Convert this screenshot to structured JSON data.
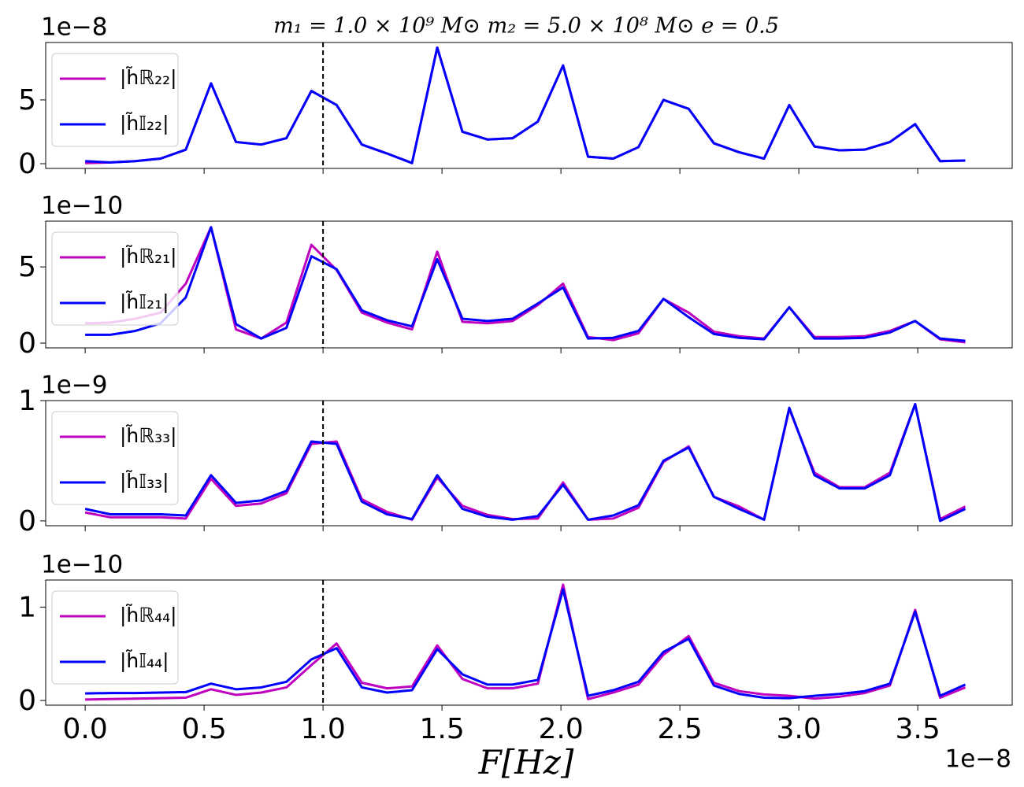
{
  "chart_data": {
    "type": "line",
    "title": "m₁ = 1.0 × 10⁹ M⊙  m₂ = 5.0 × 10⁸ M⊙  e = 0.5",
    "xlabel": "F[Hz]",
    "x_offset_label": "1e−8",
    "x": [
      0,
      0.106,
      0.211,
      0.317,
      0.423,
      0.529,
      0.634,
      0.74,
      0.846,
      0.951,
      1.057,
      1.163,
      1.269,
      1.374,
      1.48,
      1.586,
      1.691,
      1.797,
      1.903,
      2.009,
      2.114,
      2.22,
      2.326,
      2.431,
      2.537,
      2.643,
      2.749,
      2.854,
      2.96,
      3.066,
      3.171,
      3.277,
      3.383,
      3.489,
      3.594,
      3.7
    ],
    "xlim": [
      -0.166,
      3.897
    ],
    "xticks": [
      {
        "value": 0,
        "label": "0.0"
      },
      0.5,
      {
        "value": 1,
        "label": "1.0"
      },
      1.5,
      {
        "value": 2,
        "label": "2.0"
      },
      2.5,
      {
        "value": 3,
        "label": "3.0"
      },
      3.5
    ],
    "vline": 1.0,
    "panels": [
      {
        "y_offset_label": "1e−8",
        "ylim": [
          -0.37,
          9.5
        ],
        "yticks": [
          0,
          5
        ],
        "series": [
          {
            "name": "|h̃ℝ₂₂|",
            "color": "#bf00bf",
            "values": [
              0.05,
              0.1,
              0.2,
              0.4,
              1.1,
              6.3,
              1.7,
              1.5,
              2.0,
              5.7,
              4.6,
              1.5,
              0.8,
              0.05,
              9.1,
              2.5,
              1.9,
              2.0,
              3.3,
              7.7,
              0.55,
              0.4,
              1.3,
              5.0,
              4.3,
              1.6,
              0.9,
              0.4,
              4.6,
              1.35,
              1.05,
              1.1,
              1.7,
              3.1,
              0.2,
              0.25
            ]
          },
          {
            "name": "|h̃𝕀₂₂|",
            "color": "#0000ff",
            "values": [
              0.2,
              0.1,
              0.2,
              0.4,
              1.1,
              6.3,
              1.7,
              1.5,
              2.0,
              5.7,
              4.6,
              1.5,
              0.8,
              0.05,
              9.1,
              2.5,
              1.9,
              2.0,
              3.3,
              7.7,
              0.55,
              0.4,
              1.3,
              5.0,
              4.3,
              1.6,
              0.9,
              0.4,
              4.6,
              1.35,
              1.05,
              1.1,
              1.7,
              3.1,
              0.2,
              0.25
            ]
          }
        ]
      },
      {
        "y_offset_label": "1e−10",
        "ylim": [
          -0.31,
          8.0
        ],
        "yticks": [
          0,
          5
        ],
        "series": [
          {
            "name": "|h̃ℝ₂₁|",
            "color": "#bf00bf",
            "values": [
              1.3,
              1.35,
              1.6,
              2.0,
              3.9,
              7.6,
              0.9,
              0.3,
              1.35,
              6.45,
              4.8,
              2.0,
              1.35,
              0.9,
              6.0,
              1.4,
              1.3,
              1.45,
              2.5,
              3.9,
              0.4,
              0.2,
              0.65,
              2.9,
              2.0,
              0.75,
              0.45,
              0.3,
              2.35,
              0.4,
              0.4,
              0.45,
              0.8,
              1.45,
              0.25,
              0.05
            ]
          },
          {
            "name": "|h̃𝕀₂₁|",
            "color": "#0000ff",
            "values": [
              0.55,
              0.55,
              0.8,
              1.3,
              3.0,
              7.6,
              1.25,
              0.3,
              1.0,
              5.7,
              4.85,
              2.15,
              1.5,
              1.1,
              5.5,
              1.6,
              1.45,
              1.6,
              2.6,
              3.65,
              0.3,
              0.35,
              0.8,
              2.9,
              1.7,
              0.6,
              0.35,
              0.25,
              2.35,
              0.3,
              0.3,
              0.35,
              0.7,
              1.45,
              0.3,
              0.15
            ]
          }
        ]
      },
      {
        "y_offset_label": "1e−9",
        "ylim": [
          -0.04,
          1.0
        ],
        "yticks": [
          0,
          1
        ],
        "series": [
          {
            "name": "|h̃ℝ₃₃|",
            "color": "#bf00bf",
            "values": [
              0.07,
              0.03,
              0.03,
              0.03,
              0.02,
              0.35,
              0.125,
              0.145,
              0.23,
              0.64,
              0.66,
              0.18,
              0.075,
              0.01,
              0.36,
              0.125,
              0.05,
              0.015,
              0.02,
              0.32,
              0.01,
              0.02,
              0.11,
              0.49,
              0.62,
              0.2,
              0.12,
              0.01,
              0.93,
              0.4,
              0.28,
              0.28,
              0.4,
              0.97,
              0.015,
              0.12
            ]
          },
          {
            "name": "|h̃𝕀₃₃|",
            "color": "#0000ff",
            "values": [
              0.1,
              0.055,
              0.055,
              0.055,
              0.045,
              0.38,
              0.15,
              0.17,
              0.25,
              0.66,
              0.64,
              0.16,
              0.055,
              0.015,
              0.38,
              0.1,
              0.035,
              0.01,
              0.04,
              0.3,
              0.01,
              0.045,
              0.13,
              0.5,
              0.61,
              0.2,
              0.1,
              0.01,
              0.94,
              0.38,
              0.27,
              0.27,
              0.38,
              0.97,
              0.0,
              0.1
            ]
          }
        ]
      },
      {
        "y_offset_label": "1e−10",
        "ylim": [
          -0.05,
          1.29
        ],
        "yticks": [
          0,
          1
        ],
        "series": [
          {
            "name": "|h̃ℝ₄₄|",
            "color": "#bf00bf",
            "values": [
              0.01,
              0.015,
              0.02,
              0.025,
              0.03,
              0.12,
              0.06,
              0.085,
              0.14,
              0.38,
              0.61,
              0.19,
              0.13,
              0.15,
              0.59,
              0.23,
              0.13,
              0.13,
              0.18,
              1.24,
              0.015,
              0.085,
              0.17,
              0.49,
              0.69,
              0.19,
              0.1,
              0.065,
              0.05,
              0.02,
              0.04,
              0.08,
              0.16,
              0.97,
              0.03,
              0.14
            ]
          },
          {
            "name": "|h̃𝕀₄₄|",
            "color": "#0000ff",
            "values": [
              0.075,
              0.08,
              0.08,
              0.085,
              0.09,
              0.18,
              0.12,
              0.14,
              0.2,
              0.44,
              0.56,
              0.14,
              0.085,
              0.11,
              0.55,
              0.28,
              0.17,
              0.17,
              0.22,
              1.19,
              0.05,
              0.11,
              0.2,
              0.52,
              0.66,
              0.16,
              0.07,
              0.03,
              0.025,
              0.05,
              0.07,
              0.1,
              0.18,
              0.95,
              0.05,
              0.17
            ]
          }
        ]
      }
    ]
  }
}
